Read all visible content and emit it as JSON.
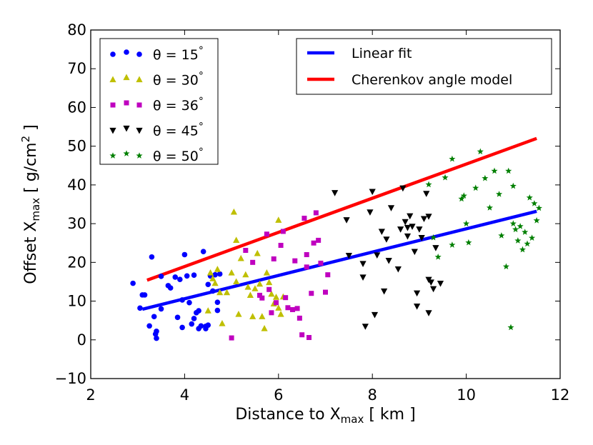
{
  "chart_data": {
    "type": "scatter",
    "xlabel": {
      "main": "Distance to X",
      "sub": "max",
      "tail": " [ km ]"
    },
    "ylabel": {
      "main": "Offset X",
      "sub": "max",
      "tail": " [ g/cm",
      "sup": "2",
      "tail2": " ]"
    },
    "xlim": [
      2,
      12
    ],
    "ylim": [
      -10,
      80
    ],
    "xticks": [
      2,
      4,
      6,
      8,
      10,
      12
    ],
    "yticks": [
      -10,
      0,
      10,
      20,
      30,
      40,
      50,
      60,
      70,
      80
    ],
    "grid": false,
    "legend_position": "top-left",
    "lines_legend_position": "top-right",
    "series": [
      {
        "name": "θ = 15°",
        "label_prefix": "θ = ",
        "label_angle": "15",
        "label_degree": "°",
        "marker": "circle",
        "color": "#0000ff",
        "points": [
          [
            2.9,
            14.6
          ],
          [
            3.05,
            8.2
          ],
          [
            3.1,
            11.6
          ],
          [
            3.15,
            11.6
          ],
          [
            3.25,
            3.6
          ],
          [
            3.3,
            21.4
          ],
          [
            3.35,
            6.0
          ],
          [
            3.38,
            1.5
          ],
          [
            3.4,
            0.4
          ],
          [
            3.4,
            2.2
          ],
          [
            3.5,
            8.0
          ],
          [
            3.5,
            16.4
          ],
          [
            3.65,
            14.0
          ],
          [
            3.7,
            13.4
          ],
          [
            3.8,
            16.2
          ],
          [
            3.85,
            5.8
          ],
          [
            3.9,
            15.6
          ],
          [
            3.95,
            3.2
          ],
          [
            3.95,
            10.3
          ],
          [
            4.0,
            22.0
          ],
          [
            4.05,
            16.5
          ],
          [
            4.1,
            9.6
          ],
          [
            4.15,
            4.1
          ],
          [
            4.2,
            16.7
          ],
          [
            4.2,
            5.5
          ],
          [
            4.25,
            7.0
          ],
          [
            4.3,
            7.5
          ],
          [
            4.3,
            2.9
          ],
          [
            4.35,
            3.6
          ],
          [
            4.4,
            22.8
          ],
          [
            4.45,
            3.5
          ],
          [
            4.45,
            2.9
          ],
          [
            4.5,
            14.3
          ],
          [
            4.5,
            3.8
          ],
          [
            4.55,
            16.5
          ],
          [
            4.6,
            12.6
          ],
          [
            4.65,
            16.8
          ],
          [
            4.7,
            9.7
          ],
          [
            4.7,
            7.6
          ],
          [
            4.75,
            17.0
          ]
        ]
      },
      {
        "name": "θ = 30°",
        "label_prefix": "θ = ",
        "label_angle": "30",
        "label_degree": "°",
        "marker": "triangle-up",
        "color": "#bfbf00",
        "points": [
          [
            4.5,
            7.5
          ],
          [
            4.55,
            17.3
          ],
          [
            4.6,
            15.8
          ],
          [
            4.65,
            14.6
          ],
          [
            4.7,
            18.2
          ],
          [
            4.75,
            12.2
          ],
          [
            4.8,
            4.2
          ],
          [
            4.9,
            12.2
          ],
          [
            5.0,
            17.3
          ],
          [
            5.05,
            33.0
          ],
          [
            5.1,
            15.0
          ],
          [
            5.15,
            6.6
          ],
          [
            5.1,
            25.7
          ],
          [
            5.2,
            21.0
          ],
          [
            5.3,
            16.8
          ],
          [
            5.35,
            13.6
          ],
          [
            5.4,
            11.5
          ],
          [
            5.45,
            6.0
          ],
          [
            5.5,
            13.2
          ],
          [
            5.55,
            22.3
          ],
          [
            5.6,
            14.4
          ],
          [
            5.65,
            6.0
          ],
          [
            5.7,
            2.9
          ],
          [
            5.75,
            17.3
          ],
          [
            5.8,
            14.8
          ],
          [
            5.85,
            11.8
          ],
          [
            5.9,
            9.3
          ],
          [
            5.95,
            11.0
          ],
          [
            6.0,
            8.2
          ],
          [
            6.0,
            30.9
          ],
          [
            6.05,
            6.6
          ],
          [
            6.1,
            11.1
          ]
        ]
      },
      {
        "name": "θ = 36°",
        "label_prefix": "θ = ",
        "label_angle": "36",
        "label_degree": "°",
        "marker": "square",
        "color": "#bf00bf",
        "points": [
          [
            5.0,
            0.5
          ],
          [
            5.3,
            23.1
          ],
          [
            5.45,
            20.0
          ],
          [
            5.6,
            11.5
          ],
          [
            5.65,
            10.8
          ],
          [
            5.75,
            27.3
          ],
          [
            5.8,
            13.0
          ],
          [
            5.85,
            7.0
          ],
          [
            5.9,
            20.9
          ],
          [
            5.95,
            9.6
          ],
          [
            6.05,
            24.4
          ],
          [
            6.1,
            28.0
          ],
          [
            6.15,
            10.9
          ],
          [
            6.2,
            8.3
          ],
          [
            6.3,
            7.8
          ],
          [
            6.35,
            20.4
          ],
          [
            6.4,
            8.1
          ],
          [
            6.45,
            5.6
          ],
          [
            6.5,
            1.3
          ],
          [
            6.55,
            31.4
          ],
          [
            6.6,
            22.0
          ],
          [
            6.65,
            0.6
          ],
          [
            6.6,
            18.8
          ],
          [
            6.7,
            12.0
          ],
          [
            6.75,
            25.0
          ],
          [
            6.8,
            32.8
          ],
          [
            6.85,
            25.7
          ],
          [
            6.9,
            19.8
          ],
          [
            7.0,
            12.3
          ],
          [
            7.05,
            16.8
          ]
        ]
      },
      {
        "name": "θ = 45°",
        "label_prefix": "θ = ",
        "label_angle": "45",
        "label_degree": "°",
        "marker": "triangle-down",
        "color": "#000000",
        "points": [
          [
            7.2,
            38.0
          ],
          [
            7.45,
            31.0
          ],
          [
            7.5,
            21.8
          ],
          [
            7.8,
            19.7
          ],
          [
            7.8,
            16.2
          ],
          [
            7.85,
            3.5
          ],
          [
            7.95,
            33.0
          ],
          [
            8.0,
            38.3
          ],
          [
            8.05,
            6.5
          ],
          [
            8.1,
            21.9
          ],
          [
            8.2,
            28.0
          ],
          [
            8.25,
            12.6
          ],
          [
            8.3,
            26.0
          ],
          [
            8.35,
            20.5
          ],
          [
            8.4,
            34.1
          ],
          [
            8.55,
            18.3
          ],
          [
            8.6,
            28.6
          ],
          [
            8.65,
            39.2
          ],
          [
            8.7,
            30.5
          ],
          [
            8.75,
            29.0
          ],
          [
            8.75,
            26.8
          ],
          [
            8.8,
            32.0
          ],
          [
            8.85,
            29.3
          ],
          [
            8.9,
            22.8
          ],
          [
            8.95,
            8.7
          ],
          [
            8.95,
            12.1
          ],
          [
            9.0,
            28.6
          ],
          [
            9.05,
            26.4
          ],
          [
            9.1,
            31.3
          ],
          [
            9.15,
            37.8
          ],
          [
            9.2,
            31.9
          ],
          [
            9.2,
            15.6
          ],
          [
            9.2,
            7.0
          ],
          [
            9.25,
            14.9
          ],
          [
            9.3,
            13.2
          ],
          [
            9.35,
            23.8
          ],
          [
            9.45,
            14.6
          ]
        ]
      },
      {
        "name": "θ = 50°",
        "label_prefix": "θ = ",
        "label_angle": "50",
        "label_degree": "°",
        "marker": "star",
        "color": "#007f00",
        "points": [
          [
            9.2,
            40.1
          ],
          [
            9.3,
            26.4
          ],
          [
            9.4,
            21.4
          ],
          [
            9.55,
            41.9
          ],
          [
            9.7,
            24.5
          ],
          [
            9.7,
            46.7
          ],
          [
            9.9,
            36.4
          ],
          [
            9.95,
            37.2
          ],
          [
            10.0,
            30.0
          ],
          [
            10.05,
            25.1
          ],
          [
            10.2,
            39.2
          ],
          [
            10.3,
            48.6
          ],
          [
            10.4,
            41.7
          ],
          [
            10.5,
            34.1
          ],
          [
            10.6,
            43.6
          ],
          [
            10.7,
            37.6
          ],
          [
            10.75,
            26.9
          ],
          [
            10.85,
            18.9
          ],
          [
            10.9,
            43.6
          ],
          [
            10.95,
            3.2
          ],
          [
            11.0,
            30.0
          ],
          [
            11.0,
            39.7
          ],
          [
            11.05,
            28.5
          ],
          [
            11.1,
            25.6
          ],
          [
            11.15,
            29.3
          ],
          [
            11.2,
            23.3
          ],
          [
            11.25,
            27.8
          ],
          [
            11.3,
            24.8
          ],
          [
            11.35,
            36.7
          ],
          [
            11.4,
            26.3
          ],
          [
            11.45,
            35.2
          ],
          [
            11.5,
            30.8
          ],
          [
            11.55,
            34.0
          ]
        ]
      }
    ],
    "lines": [
      {
        "name": "Linear fit",
        "color": "#0000ff",
        "x": [
          3.1,
          11.5
        ],
        "y": [
          7.9,
          33.2
        ]
      },
      {
        "name": "Cherenkov angle model",
        "color": "#ff0000",
        "x": [
          3.2,
          11.5
        ],
        "y": [
          15.4,
          52.0
        ]
      }
    ]
  }
}
